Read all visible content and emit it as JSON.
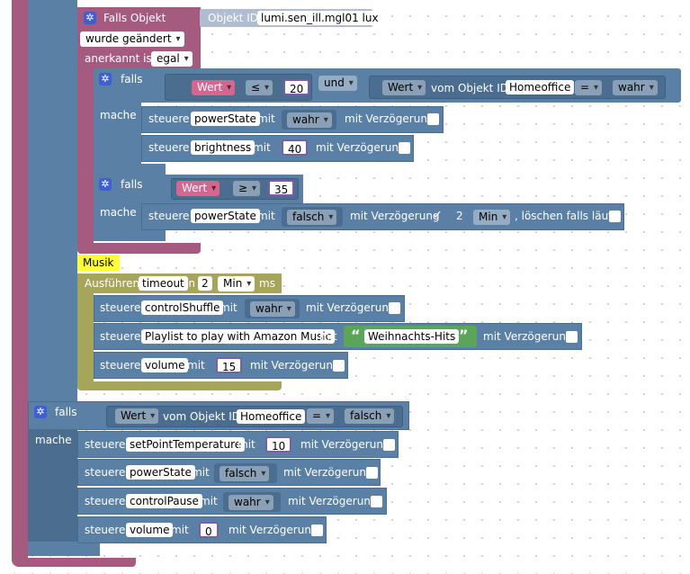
{
  "trigger": {
    "title": "Falls Objekt",
    "obj_label": "Objekt ID",
    "obj_value": "lumi.sen_ill.mgl01 lux",
    "changed": "wurde geändert",
    "acked_label": "anerkannt ist",
    "acked_value": "egal"
  },
  "if1": {
    "falls": "falls",
    "mache": "mache",
    "wert": "Wert",
    "op1": "≤",
    "num1": "20",
    "und": "und",
    "wert2": "Wert",
    "vom": "vom Objekt ID",
    "obj": "Homeoffice",
    "eq": "=",
    "bool": "wahr",
    "rows": [
      {
        "steuere": "steuere",
        "target": "powerState",
        "mit": "mit",
        "value": "wahr",
        "delay": "mit Verzögerung"
      },
      {
        "steuere": "steuere",
        "target": "brightness",
        "mit": "mit",
        "value": "40",
        "delay": "mit Verzögerung"
      }
    ]
  },
  "if2": {
    "falls": "falls",
    "mache": "mache",
    "wert": "Wert",
    "op": "≥",
    "num": "35",
    "row": {
      "steuere": "steuere",
      "target": "powerState",
      "mit": "mit",
      "value": "falsch",
      "delay": "mit Verzögerung",
      "check": "✓",
      "amount": "2",
      "unit": "Min",
      "clear": ", löschen falls läuft"
    }
  },
  "music": {
    "comment": "Musik",
    "exec": "Ausführen",
    "timeout": "timeout",
    "in": "in",
    "amount": "2",
    "unit": "Min",
    "ms": "ms",
    "rows": [
      {
        "steuere": "steuere",
        "target": "controlShuffle",
        "mit": "mit",
        "value": "wahr",
        "delay": "mit Verzögerung"
      },
      {
        "steuere": "steuere",
        "target": "Playlist to play with Amazon Music",
        "mit": "mit",
        "value": "Weihnachts-Hits",
        "delay": "mit Verzögerung"
      },
      {
        "steuere": "steuere",
        "target": "volume",
        "mit": "mit",
        "value": "15",
        "delay": "mit Verzögerung"
      }
    ]
  },
  "if3": {
    "falls": "falls",
    "mache": "mache",
    "wert": "Wert",
    "vom": "vom Objekt ID",
    "obj": "Homeoffice",
    "eq": "=",
    "bool": "falsch",
    "rows": [
      {
        "steuere": "steuere",
        "target": "setPointTemperature",
        "mit": "mit",
        "value": "10",
        "delay": "mit Verzögerung"
      },
      {
        "steuere": "steuere",
        "target": "powerState",
        "mit": "mit",
        "value": "falsch",
        "delay": "mit Verzögerung"
      },
      {
        "steuere": "steuere",
        "target": "controlPause",
        "mit": "mit",
        "value": "wahr",
        "delay": "mit Verzögerung"
      },
      {
        "steuere": "steuere",
        "target": "volume",
        "mit": "mit",
        "value": "0",
        "delay": "mit Verzögerung"
      }
    ]
  },
  "icons": {
    "gear": "gear-icon",
    "quote_open": "“",
    "quote_close": "”"
  }
}
